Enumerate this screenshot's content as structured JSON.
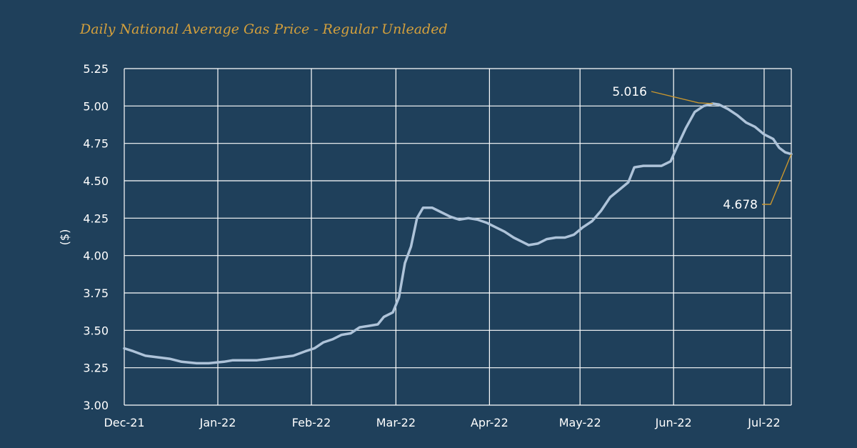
{
  "colors": {
    "background": "#1f405b",
    "title": "#d4a03c",
    "grid": "#ffffff",
    "line": "#aec3d9",
    "annotation_leader": "#c9962e",
    "text": "#ffffff"
  },
  "chart_data": {
    "type": "line",
    "title": "Daily National Average Gas Price - Regular Unleaded",
    "ylabel": "($)",
    "xlabel": "",
    "ylim": [
      3.0,
      5.25
    ],
    "yticks": [
      "3.00",
      "3.25",
      "3.50",
      "3.75",
      "4.00",
      "4.25",
      "4.50",
      "4.75",
      "5.00",
      "5.25"
    ],
    "xlim": [
      "2021-12-01",
      "2022-07-10"
    ],
    "xticks": [
      {
        "date": "2021-12-01",
        "label": "Dec-21"
      },
      {
        "date": "2022-01-01",
        "label": "Jan-22"
      },
      {
        "date": "2022-02-01",
        "label": "Feb-22"
      },
      {
        "date": "2022-03-01",
        "label": "Mar-22"
      },
      {
        "date": "2022-04-01",
        "label": "Apr-22"
      },
      {
        "date": "2022-05-01",
        "label": "May-22"
      },
      {
        "date": "2022-06-01",
        "label": "Jun-22"
      },
      {
        "date": "2022-07-01",
        "label": "Jul-22"
      }
    ],
    "grid": true,
    "legend": "none",
    "series": [
      {
        "points": [
          [
            "2021-12-01",
            3.38
          ],
          [
            "2021-12-04",
            3.36
          ],
          [
            "2021-12-08",
            3.33
          ],
          [
            "2021-12-12",
            3.32
          ],
          [
            "2021-12-16",
            3.31
          ],
          [
            "2021-12-20",
            3.29
          ],
          [
            "2021-12-25",
            3.28
          ],
          [
            "2021-12-29",
            3.28
          ],
          [
            "2022-01-03",
            3.29
          ],
          [
            "2022-01-06",
            3.3
          ],
          [
            "2022-01-10",
            3.3
          ],
          [
            "2022-01-14",
            3.3
          ],
          [
            "2022-01-18",
            3.31
          ],
          [
            "2022-01-22",
            3.32
          ],
          [
            "2022-01-26",
            3.33
          ],
          [
            "2022-01-30",
            3.36
          ],
          [
            "2022-02-02",
            3.38
          ],
          [
            "2022-02-05",
            3.42
          ],
          [
            "2022-02-08",
            3.44
          ],
          [
            "2022-02-11",
            3.47
          ],
          [
            "2022-02-14",
            3.48
          ],
          [
            "2022-02-17",
            3.52
          ],
          [
            "2022-02-20",
            3.53
          ],
          [
            "2022-02-23",
            3.54
          ],
          [
            "2022-02-25",
            3.59
          ],
          [
            "2022-02-28",
            3.62
          ],
          [
            "2022-03-02",
            3.72
          ],
          [
            "2022-03-04",
            3.95
          ],
          [
            "2022-03-06",
            4.06
          ],
          [
            "2022-03-08",
            4.25
          ],
          [
            "2022-03-10",
            4.32
          ],
          [
            "2022-03-13",
            4.32
          ],
          [
            "2022-03-16",
            4.29
          ],
          [
            "2022-03-19",
            4.26
          ],
          [
            "2022-03-22",
            4.24
          ],
          [
            "2022-03-25",
            4.25
          ],
          [
            "2022-03-28",
            4.24
          ],
          [
            "2022-03-31",
            4.22
          ],
          [
            "2022-04-03",
            4.19
          ],
          [
            "2022-04-06",
            4.16
          ],
          [
            "2022-04-09",
            4.12
          ],
          [
            "2022-04-12",
            4.09
          ],
          [
            "2022-04-14",
            4.07
          ],
          [
            "2022-04-17",
            4.08
          ],
          [
            "2022-04-20",
            4.11
          ],
          [
            "2022-04-23",
            4.12
          ],
          [
            "2022-04-26",
            4.12
          ],
          [
            "2022-04-29",
            4.14
          ],
          [
            "2022-05-02",
            4.19
          ],
          [
            "2022-05-05",
            4.23
          ],
          [
            "2022-05-08",
            4.3
          ],
          [
            "2022-05-11",
            4.39
          ],
          [
            "2022-05-14",
            4.44
          ],
          [
            "2022-05-17",
            4.49
          ],
          [
            "2022-05-19",
            4.59
          ],
          [
            "2022-05-22",
            4.6
          ],
          [
            "2022-05-25",
            4.6
          ],
          [
            "2022-05-28",
            4.6
          ],
          [
            "2022-05-31",
            4.63
          ],
          [
            "2022-06-02",
            4.72
          ],
          [
            "2022-06-05",
            4.85
          ],
          [
            "2022-06-08",
            4.96
          ],
          [
            "2022-06-11",
            5.0
          ],
          [
            "2022-06-14",
            5.016
          ],
          [
            "2022-06-16",
            5.01
          ],
          [
            "2022-06-19",
            4.98
          ],
          [
            "2022-06-22",
            4.94
          ],
          [
            "2022-06-25",
            4.89
          ],
          [
            "2022-06-28",
            4.86
          ],
          [
            "2022-07-01",
            4.81
          ],
          [
            "2022-07-04",
            4.78
          ],
          [
            "2022-07-06",
            4.72
          ],
          [
            "2022-07-08",
            4.69
          ],
          [
            "2022-07-10",
            4.678
          ]
        ]
      }
    ],
    "annotations": [
      {
        "text": "5.016",
        "date": "2022-06-14",
        "value": 5.016
      },
      {
        "text": "4.678",
        "date": "2022-07-10",
        "value": 4.678
      }
    ]
  }
}
